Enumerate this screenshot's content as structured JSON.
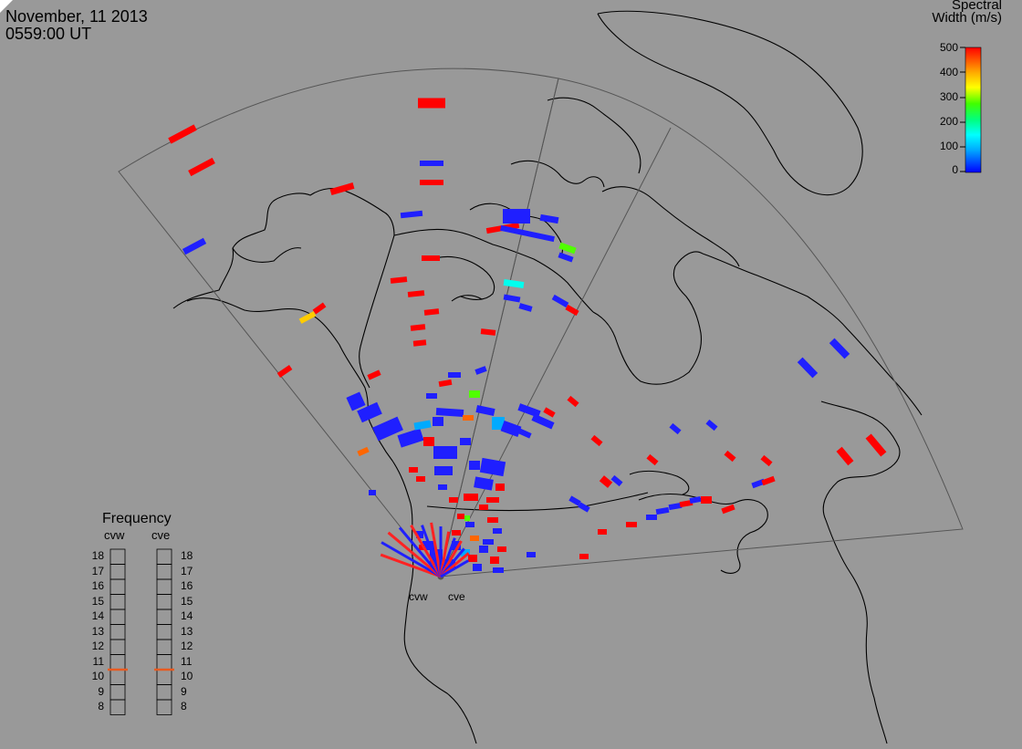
{
  "header": {
    "date": "November, 11 2013",
    "time": "0559:00 UT"
  },
  "colorbar": {
    "title_line1": "Spectral",
    "title_line2": "Width (m/s)",
    "ticks": [
      "500",
      "400",
      "300",
      "200",
      "100",
      "0"
    ],
    "min": 0,
    "max": 500
  },
  "radars": {
    "west_label": "cvw",
    "east_label": "cve"
  },
  "frequency_panel": {
    "title": "Frequency",
    "col_left": "cvw",
    "col_right": "cve",
    "ticks": [
      "18",
      "17",
      "16",
      "15",
      "14",
      "13",
      "12",
      "11",
      "10",
      "9",
      "8"
    ],
    "min_mhz": 8,
    "max_mhz": 18,
    "cvw_mhz": 10.5,
    "cve_mhz": 10.5,
    "marker_color": "#e85a20"
  },
  "colors": {
    "background": "#999999",
    "coastline": "#000000",
    "fov_outline": "#555555"
  }
}
